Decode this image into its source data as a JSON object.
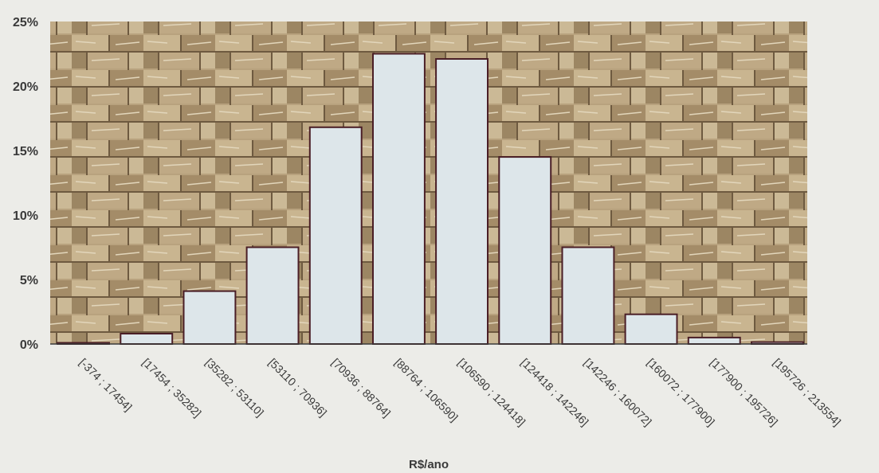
{
  "chart_data": {
    "type": "bar",
    "title": "",
    "xlabel": "R$/ano",
    "ylabel": "",
    "ylim": [
      0,
      25
    ],
    "yticks": [
      "0%",
      "5%",
      "10%",
      "15%",
      "20%",
      "25%"
    ],
    "categories": [
      "[-374 ; 17454]",
      "[17454 ; 35282]",
      "[35282 ; 53110]",
      "[53110 ; 70936]",
      "[70936 ; 88764]",
      "[88764 ; 106590]",
      "[106590 ; 124418]",
      "[124418 ; 142246]",
      "[142246 ; 160072]",
      "[160072 ; 177900]",
      "[177900 ; 195726]",
      "[195726 ; 213554]"
    ],
    "values": [
      0.0,
      0.8,
      4.1,
      7.5,
      16.8,
      22.5,
      22.1,
      14.5,
      7.5,
      2.3,
      0.5,
      0.15
    ],
    "grid": false,
    "legend": "none",
    "colors": {
      "bar_fill": "#dde6ea",
      "bar_stroke": "#4a1e26",
      "axis": "#3a3a3a",
      "text": "#3a3a3a",
      "plot_background": "#b9a27d",
      "page_background": "#ecece8"
    },
    "plot_background": "textured stone-wall photograph (tan/brown)"
  }
}
